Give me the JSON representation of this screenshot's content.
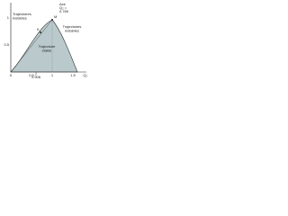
{
  "regions": {
    "left": [
      "Trajectoires",
      "instables"
    ],
    "right": [
      "Trajectoires",
      "instables"
    ],
    "stable": [
      "Trajectoire",
      "stable"
    ]
  },
  "axis_note": [
    "Axe",
    "Q₂ =",
    "0.789"
  ],
  "points": [
    "M",
    "K"
  ],
  "marker": "0.906",
  "x_axis_label": "Q₂",
  "x_ticks": [
    "0",
    "0.5",
    "1",
    "1.5"
  ],
  "y_ticks": [
    "0.5",
    "1"
  ]
}
